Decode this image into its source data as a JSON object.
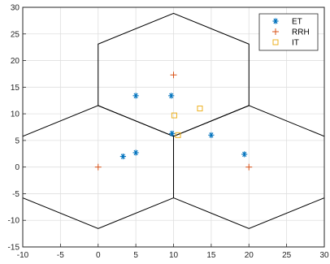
{
  "chart_data": {
    "type": "scatter",
    "title": "",
    "xlabel": "",
    "ylabel": "",
    "xlim": [
      -10,
      30
    ],
    "ylim": [
      -15,
      30
    ],
    "xticks": [
      -10,
      -5,
      0,
      5,
      10,
      15,
      20,
      25,
      30
    ],
    "yticks": [
      -15,
      -10,
      -5,
      0,
      5,
      10,
      15,
      20,
      25,
      30
    ],
    "grid": true,
    "legend_position": "top-right",
    "hexagons": [
      {
        "center": [
          0,
          0
        ],
        "radius": 11.55
      },
      {
        "center": [
          10,
          17.32
        ],
        "radius": 11.55
      },
      {
        "center": [
          20,
          0
        ],
        "radius": 11.55
      }
    ],
    "hexagon_color": "#000000",
    "series": [
      {
        "name": "ET",
        "marker": "asterisk",
        "color": "#0072BD",
        "points": [
          [
            3.3,
            2.0
          ],
          [
            5.0,
            2.7
          ],
          [
            5.0,
            13.4
          ],
          [
            9.7,
            13.4
          ],
          [
            9.8,
            6.3
          ],
          [
            15.0,
            6.0
          ],
          [
            19.4,
            2.4
          ]
        ]
      },
      {
        "name": "RRH",
        "marker": "plus",
        "color": "#D95319",
        "points": [
          [
            0,
            0
          ],
          [
            10,
            17.3
          ],
          [
            20,
            0
          ]
        ]
      },
      {
        "name": "IT",
        "marker": "square",
        "color": "#EDB120",
        "points": [
          [
            10.1,
            9.7
          ],
          [
            13.5,
            11.0
          ],
          [
            10.6,
            6.0
          ]
        ]
      }
    ]
  }
}
